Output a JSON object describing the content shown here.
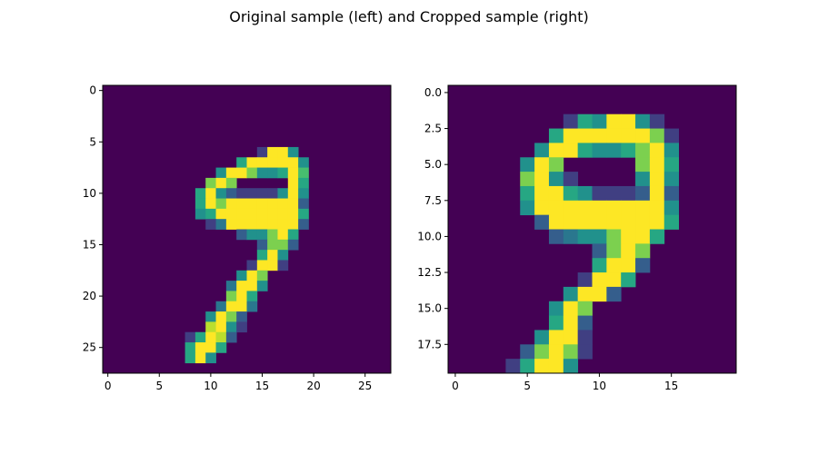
{
  "figure": {
    "title": "Original sample (left) and Cropped sample (right)"
  },
  "chart_data": [
    {
      "type": "heatmap",
      "name": "original-sample",
      "colormap": "viridis",
      "grid": false,
      "rows": 28,
      "cols": 28,
      "xlim": [
        -0.5,
        27.5
      ],
      "ylim": [
        27.5,
        -0.5
      ],
      "xticks": [
        0,
        5,
        10,
        15,
        20,
        25
      ],
      "yticks": [
        0,
        5,
        10,
        15,
        20,
        25
      ],
      "xtick_labels": [
        "0",
        "5",
        "10",
        "15",
        "20",
        "25"
      ],
      "ytick_labels": [
        "0",
        "5",
        "10",
        "15",
        "20",
        "25"
      ],
      "background_value": 0,
      "cells": [
        [
          6,
          15,
          0.2
        ],
        [
          6,
          16,
          1
        ],
        [
          6,
          17,
          1
        ],
        [
          6,
          18,
          0.5
        ],
        [
          7,
          13,
          0.6
        ],
        [
          7,
          14,
          1
        ],
        [
          7,
          15,
          1
        ],
        [
          7,
          16,
          1
        ],
        [
          7,
          17,
          1
        ],
        [
          7,
          18,
          1
        ],
        [
          7,
          19,
          0.5
        ],
        [
          8,
          11,
          0.5
        ],
        [
          8,
          12,
          1
        ],
        [
          8,
          13,
          1
        ],
        [
          8,
          14,
          0.8
        ],
        [
          8,
          15,
          0.5
        ],
        [
          8,
          16,
          0.5
        ],
        [
          8,
          17,
          0.6
        ],
        [
          8,
          18,
          1
        ],
        [
          8,
          19,
          0.7
        ],
        [
          9,
          10,
          0.8
        ],
        [
          9,
          11,
          1
        ],
        [
          9,
          12,
          0.8
        ],
        [
          9,
          18,
          1
        ],
        [
          9,
          19,
          0.6
        ],
        [
          10,
          9,
          0.6
        ],
        [
          10,
          10,
          1
        ],
        [
          10,
          11,
          0.5
        ],
        [
          10,
          12,
          0.3
        ],
        [
          10,
          13,
          0.2
        ],
        [
          10,
          14,
          0.2
        ],
        [
          10,
          15,
          0.2
        ],
        [
          10,
          16,
          0.2
        ],
        [
          10,
          17,
          0.5
        ],
        [
          10,
          18,
          1
        ],
        [
          10,
          19,
          0.5
        ],
        [
          11,
          9,
          0.6
        ],
        [
          11,
          10,
          1
        ],
        [
          11,
          11,
          0.8
        ],
        [
          11,
          12,
          1
        ],
        [
          11,
          13,
          1
        ],
        [
          11,
          14,
          1
        ],
        [
          11,
          15,
          1
        ],
        [
          11,
          16,
          1
        ],
        [
          11,
          17,
          1
        ],
        [
          11,
          18,
          1
        ],
        [
          11,
          19,
          0.3
        ],
        [
          12,
          9,
          0.5
        ],
        [
          12,
          10,
          0.6
        ],
        [
          12,
          11,
          1
        ],
        [
          12,
          12,
          1
        ],
        [
          12,
          13,
          1
        ],
        [
          12,
          14,
          1
        ],
        [
          12,
          15,
          1
        ],
        [
          12,
          16,
          1
        ],
        [
          12,
          17,
          1
        ],
        [
          12,
          18,
          1
        ],
        [
          12,
          19,
          0.6
        ],
        [
          13,
          10,
          0.2
        ],
        [
          13,
          11,
          0.4
        ],
        [
          13,
          12,
          1
        ],
        [
          13,
          13,
          1
        ],
        [
          13,
          14,
          1
        ],
        [
          13,
          15,
          1
        ],
        [
          13,
          16,
          1
        ],
        [
          13,
          17,
          1
        ],
        [
          13,
          18,
          1
        ],
        [
          13,
          19,
          0.3
        ],
        [
          14,
          13,
          0.3
        ],
        [
          14,
          14,
          0.5
        ],
        [
          14,
          15,
          0.5
        ],
        [
          14,
          16,
          0.8
        ],
        [
          14,
          17,
          1
        ],
        [
          14,
          18,
          0.6
        ],
        [
          15,
          15,
          0.3
        ],
        [
          15,
          16,
          0.8
        ],
        [
          15,
          17,
          0.8
        ],
        [
          15,
          18,
          0.3
        ],
        [
          16,
          15,
          0.6
        ],
        [
          16,
          16,
          1
        ],
        [
          16,
          17,
          0.5
        ],
        [
          17,
          14,
          0.2
        ],
        [
          17,
          15,
          1
        ],
        [
          17,
          16,
          1
        ],
        [
          17,
          17,
          0.2
        ],
        [
          18,
          13,
          0.5
        ],
        [
          18,
          14,
          1
        ],
        [
          18,
          15,
          0.8
        ],
        [
          19,
          12,
          0.4
        ],
        [
          19,
          13,
          1
        ],
        [
          19,
          14,
          1
        ],
        [
          19,
          15,
          0.5
        ],
        [
          20,
          12,
          0.8
        ],
        [
          20,
          13,
          1
        ],
        [
          20,
          14,
          0.6
        ],
        [
          21,
          11,
          0.4
        ],
        [
          21,
          12,
          1
        ],
        [
          21,
          13,
          1
        ],
        [
          21,
          14,
          0.4
        ],
        [
          22,
          10,
          0.5
        ],
        [
          22,
          11,
          1
        ],
        [
          22,
          12,
          0.8
        ],
        [
          22,
          13,
          0.3
        ],
        [
          23,
          10,
          0.9
        ],
        [
          23,
          11,
          1
        ],
        [
          23,
          12,
          0.5
        ],
        [
          23,
          13,
          0.2
        ],
        [
          24,
          8,
          0.2
        ],
        [
          24,
          9,
          0.6
        ],
        [
          24,
          10,
          1
        ],
        [
          24,
          11,
          0.9
        ],
        [
          24,
          12,
          0.3
        ],
        [
          25,
          8,
          0.6
        ],
        [
          25,
          9,
          1
        ],
        [
          25,
          10,
          1
        ],
        [
          25,
          11,
          0.6
        ],
        [
          26,
          8,
          0.6
        ],
        [
          26,
          9,
          1
        ],
        [
          26,
          10,
          0.5
        ]
      ]
    },
    {
      "type": "heatmap",
      "name": "cropped-sample",
      "colormap": "viridis",
      "grid": false,
      "rows": 20,
      "cols": 20,
      "xlim": [
        -0.5,
        19.5
      ],
      "ylim": [
        19.5,
        -0.5
      ],
      "xticks": [
        0,
        5,
        10,
        15
      ],
      "yticks": [
        0.0,
        2.5,
        5.0,
        7.5,
        10.0,
        12.5,
        15.0,
        17.5
      ],
      "xtick_labels": [
        "0",
        "5",
        "10",
        "15"
      ],
      "ytick_labels": [
        "0.0",
        "2.5",
        "5.0",
        "7.5",
        "10.0",
        "12.5",
        "15.0",
        "17.5"
      ],
      "background_value": 0,
      "cells": [
        [
          2,
          8,
          0.2
        ],
        [
          2,
          9,
          0.6
        ],
        [
          2,
          10,
          0.5
        ],
        [
          2,
          11,
          1
        ],
        [
          2,
          12,
          1
        ],
        [
          2,
          13,
          0.5
        ],
        [
          2,
          14,
          0.2
        ],
        [
          3,
          7,
          0.6
        ],
        [
          3,
          8,
          1
        ],
        [
          3,
          9,
          1
        ],
        [
          3,
          10,
          1
        ],
        [
          3,
          11,
          1
        ],
        [
          3,
          12,
          1
        ],
        [
          3,
          13,
          1
        ],
        [
          3,
          14,
          0.8
        ],
        [
          3,
          15,
          0.2
        ],
        [
          4,
          6,
          0.5
        ],
        [
          4,
          7,
          1
        ],
        [
          4,
          8,
          1
        ],
        [
          4,
          9,
          0.6
        ],
        [
          4,
          10,
          0.5
        ],
        [
          4,
          11,
          0.5
        ],
        [
          4,
          12,
          0.6
        ],
        [
          4,
          13,
          0.8
        ],
        [
          4,
          14,
          1
        ],
        [
          4,
          15,
          0.5
        ],
        [
          5,
          5,
          0.5
        ],
        [
          5,
          6,
          1
        ],
        [
          5,
          7,
          0.8
        ],
        [
          5,
          13,
          0.8
        ],
        [
          5,
          14,
          1
        ],
        [
          5,
          15,
          0.6
        ],
        [
          6,
          5,
          0.8
        ],
        [
          6,
          6,
          1
        ],
        [
          6,
          7,
          0.5
        ],
        [
          6,
          8,
          0.2
        ],
        [
          6,
          13,
          0.5
        ],
        [
          6,
          14,
          1
        ],
        [
          6,
          15,
          0.5
        ],
        [
          7,
          5,
          0.6
        ],
        [
          7,
          6,
          1
        ],
        [
          7,
          7,
          1
        ],
        [
          7,
          8,
          0.6
        ],
        [
          7,
          9,
          0.5
        ],
        [
          7,
          10,
          0.2
        ],
        [
          7,
          11,
          0.2
        ],
        [
          7,
          12,
          0.2
        ],
        [
          7,
          13,
          0.3
        ],
        [
          7,
          14,
          1
        ],
        [
          7,
          15,
          0.3
        ],
        [
          8,
          5,
          0.5
        ],
        [
          8,
          6,
          1
        ],
        [
          8,
          7,
          1
        ],
        [
          8,
          8,
          1
        ],
        [
          8,
          9,
          1
        ],
        [
          8,
          10,
          1
        ],
        [
          8,
          11,
          1
        ],
        [
          8,
          12,
          1
        ],
        [
          8,
          13,
          1
        ],
        [
          8,
          14,
          1
        ],
        [
          8,
          15,
          0.5
        ],
        [
          9,
          6,
          0.3
        ],
        [
          9,
          7,
          1
        ],
        [
          9,
          8,
          1
        ],
        [
          9,
          9,
          1
        ],
        [
          9,
          10,
          1
        ],
        [
          9,
          11,
          1
        ],
        [
          9,
          12,
          1
        ],
        [
          9,
          13,
          1
        ],
        [
          9,
          14,
          1
        ],
        [
          9,
          15,
          0.6
        ],
        [
          10,
          7,
          0.3
        ],
        [
          10,
          8,
          0.4
        ],
        [
          10,
          9,
          0.5
        ],
        [
          10,
          10,
          0.5
        ],
        [
          10,
          11,
          0.8
        ],
        [
          10,
          12,
          1
        ],
        [
          10,
          13,
          1
        ],
        [
          10,
          14,
          0.6
        ],
        [
          11,
          10,
          0.3
        ],
        [
          11,
          11,
          0.8
        ],
        [
          11,
          12,
          1
        ],
        [
          11,
          13,
          0.8
        ],
        [
          12,
          10,
          0.6
        ],
        [
          12,
          11,
          1
        ],
        [
          12,
          12,
          1
        ],
        [
          12,
          13,
          0.3
        ],
        [
          13,
          9,
          0.2
        ],
        [
          13,
          10,
          1
        ],
        [
          13,
          11,
          1
        ],
        [
          13,
          12,
          0.6
        ],
        [
          14,
          8,
          0.5
        ],
        [
          14,
          9,
          1
        ],
        [
          14,
          10,
          1
        ],
        [
          14,
          11,
          0.3
        ],
        [
          15,
          7,
          0.5
        ],
        [
          15,
          8,
          1
        ],
        [
          15,
          9,
          0.8
        ],
        [
          16,
          7,
          0.6
        ],
        [
          16,
          8,
          1
        ],
        [
          16,
          9,
          0.3
        ],
        [
          17,
          6,
          0.5
        ],
        [
          17,
          7,
          1
        ],
        [
          17,
          8,
          1
        ],
        [
          17,
          9,
          0.2
        ],
        [
          18,
          5,
          0.3
        ],
        [
          18,
          6,
          0.8
        ],
        [
          18,
          7,
          1
        ],
        [
          18,
          8,
          0.8
        ],
        [
          18,
          9,
          0.2
        ],
        [
          19,
          4,
          0.2
        ],
        [
          19,
          5,
          0.6
        ],
        [
          19,
          6,
          1
        ],
        [
          19,
          7,
          1
        ],
        [
          19,
          8,
          0.5
        ]
      ]
    }
  ]
}
